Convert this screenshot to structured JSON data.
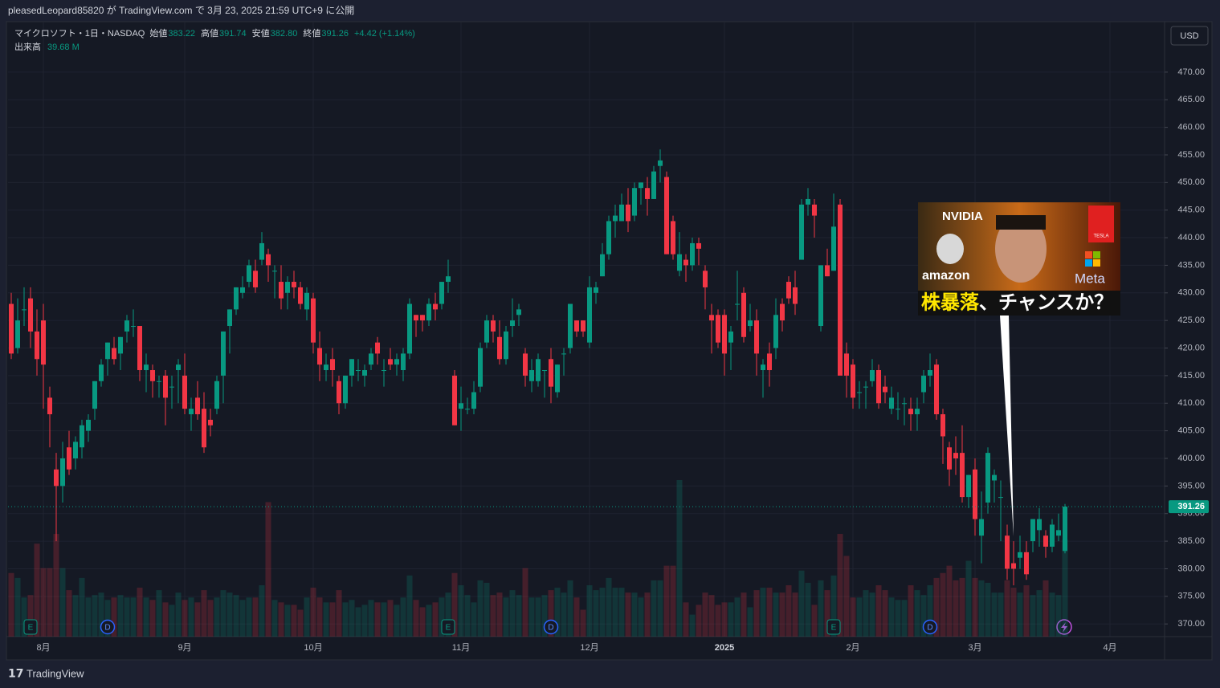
{
  "header": {
    "text": "pleasedLeopard85820 が TradingView.com で 3月 23, 2025 21:59 UTC+9 に公開"
  },
  "footer": {
    "brand": "TradingView"
  },
  "legend": {
    "symbol": "マイクロソフト・1日・NASDAQ",
    "items": [
      {
        "label": "始値",
        "value": "383.22"
      },
      {
        "label": "高値",
        "value": "391.74"
      },
      {
        "label": "安値",
        "value": "382.80"
      },
      {
        "label": "終値",
        "value": "391.26"
      }
    ],
    "change": "+4.42 (+1.14%)",
    "volume_label": "出来高",
    "volume_value": "39.68 M"
  },
  "currency": "USD",
  "thumbnail": {
    "brands": [
      "NVIDIA",
      "amazon",
      "Meta",
      "TESLA"
    ],
    "caption_highlight": "株暴落",
    "caption_rest": "、チャンスか？"
  },
  "chart_data": {
    "type": "candlestick",
    "up_color": "#089981",
    "down_color": "#f23645",
    "last_price": {
      "value": 391.26,
      "label": "391.26"
    },
    "ylim": [
      367.7,
      479.0
    ],
    "xlim": [
      -0.5,
      179.5
    ],
    "grid": true,
    "yticks": [
      {
        "value": 370,
        "label": "370.00"
      },
      {
        "value": 375,
        "label": "375.00"
      },
      {
        "value": 380,
        "label": "380.00"
      },
      {
        "value": 385,
        "label": "385.00"
      },
      {
        "value": 390,
        "label": "390.00"
      },
      {
        "value": 395,
        "label": "395.00"
      },
      {
        "value": 400,
        "label": "400.00"
      },
      {
        "value": 405,
        "label": "405.00"
      },
      {
        "value": 410,
        "label": "410.00"
      },
      {
        "value": 415,
        "label": "415.00"
      },
      {
        "value": 420,
        "label": "420.00"
      },
      {
        "value": 425,
        "label": "425.00"
      },
      {
        "value": 430,
        "label": "430.00"
      },
      {
        "value": 435,
        "label": "435.00"
      },
      {
        "value": 440,
        "label": "440.00"
      },
      {
        "value": 445,
        "label": "445.00"
      },
      {
        "value": 450,
        "label": "450.00"
      },
      {
        "value": 455,
        "label": "455.00"
      },
      {
        "value": 460,
        "label": "460.00"
      },
      {
        "value": 465,
        "label": "465.00"
      },
      {
        "value": 470,
        "label": "470.00"
      }
    ],
    "xticks": [
      {
        "value": 5,
        "label": "8月"
      },
      {
        "value": 27,
        "label": "9月"
      },
      {
        "value": 47,
        "label": "10月"
      },
      {
        "value": 70,
        "label": "11月"
      },
      {
        "value": 90,
        "label": "12月"
      },
      {
        "value": 111,
        "label": "2025"
      },
      {
        "value": 131,
        "label": "2月"
      },
      {
        "value": 150,
        "label": "3月"
      },
      {
        "value": 171,
        "label": "4月"
      }
    ],
    "events": [
      {
        "index": 3,
        "label": "E"
      },
      {
        "index": 15,
        "label": "D"
      },
      {
        "index": 68,
        "label": "E"
      },
      {
        "index": 84,
        "label": "D"
      },
      {
        "index": 128,
        "label": "E"
      },
      {
        "index": 143,
        "label": "D"
      }
    ],
    "candles": [
      [
        428,
        430,
        418,
        419
      ],
      [
        420,
        429,
        419,
        425
      ],
      [
        427,
        431,
        424,
        427
      ],
      [
        429,
        431,
        420,
        423
      ],
      [
        423,
        427,
        415,
        418
      ],
      [
        425,
        428,
        409,
        417
      ],
      [
        411,
        413,
        402,
        408
      ],
      [
        398,
        401,
        385,
        395
      ],
      [
        395,
        403,
        392,
        400
      ],
      [
        402,
        405,
        397,
        398
      ],
      [
        400,
        404,
        398,
        403
      ],
      [
        402,
        407,
        400,
        406
      ],
      [
        405,
        408,
        403,
        407
      ],
      [
        409,
        414,
        407,
        414
      ],
      [
        414,
        418,
        413,
        417
      ],
      [
        418,
        421,
        415,
        421
      ],
      [
        420,
        422,
        417,
        418
      ],
      [
        419,
        422,
        416,
        422
      ],
      [
        423,
        426,
        421,
        425
      ],
      [
        424,
        427,
        422,
        424
      ],
      [
        424,
        424,
        414,
        416
      ],
      [
        416,
        419,
        412,
        417
      ],
      [
        416,
        417,
        411,
        414
      ],
      [
        414,
        415,
        411,
        414
      ],
      [
        415,
        416,
        406,
        411
      ],
      [
        413,
        415,
        409,
        413
      ],
      [
        416,
        418,
        410,
        417
      ],
      [
        415,
        419,
        408,
        409
      ],
      [
        408,
        411,
        405,
        409
      ],
      [
        411,
        414,
        407,
        408
      ],
      [
        409,
        412,
        401,
        402
      ],
      [
        407,
        409,
        404,
        406
      ],
      [
        409,
        415,
        408,
        414
      ],
      [
        415,
        423,
        410,
        423
      ],
      [
        424,
        427,
        419,
        427
      ],
      [
        427,
        431,
        426,
        431
      ],
      [
        430,
        433,
        429,
        431
      ],
      [
        432,
        436,
        431,
        435
      ],
      [
        434,
        436,
        430,
        431
      ],
      [
        436,
        441,
        435,
        439
      ],
      [
        437,
        438,
        432,
        435
      ],
      [
        434,
        435,
        429,
        434
      ],
      [
        432,
        435,
        427,
        429
      ],
      [
        430,
        433,
        427,
        432
      ],
      [
        432,
        434,
        429,
        431
      ],
      [
        431,
        432,
        427,
        428
      ],
      [
        427,
        431,
        425,
        430
      ],
      [
        429,
        430,
        419,
        421
      ],
      [
        420,
        423,
        414,
        417
      ],
      [
        416,
        419,
        414,
        417
      ],
      [
        418,
        420,
        413,
        416
      ],
      [
        414,
        415,
        408,
        410
      ],
      [
        410,
        415,
        409,
        415
      ],
      [
        415,
        418,
        413,
        418
      ],
      [
        416,
        418,
        414,
        416
      ],
      [
        415,
        417,
        413,
        416
      ],
      [
        417,
        420,
        416,
        419
      ],
      [
        421,
        422,
        417,
        419
      ],
      [
        416,
        418,
        413,
        416
      ],
      [
        418,
        420,
        416,
        417
      ],
      [
        417,
        419,
        415,
        418
      ],
      [
        416,
        420,
        414,
        419
      ],
      [
        419,
        429,
        418,
        428
      ],
      [
        426,
        426,
        422,
        425
      ],
      [
        426,
        426,
        423,
        425
      ],
      [
        425,
        429,
        424,
        428
      ],
      [
        428,
        430,
        425,
        427
      ],
      [
        428,
        432,
        427,
        432
      ],
      [
        432,
        436,
        430,
        433
      ],
      [
        415,
        416,
        406,
        406
      ],
      [
        409,
        413,
        405,
        410
      ],
      [
        409,
        411,
        408,
        409
      ],
      [
        409,
        414,
        408,
        412
      ],
      [
        413,
        421,
        412,
        420
      ],
      [
        421,
        426,
        420,
        425
      ],
      [
        425,
        426,
        421,
        423
      ],
      [
        422,
        425,
        417,
        418
      ],
      [
        418,
        424,
        417,
        423
      ],
      [
        424,
        429,
        422,
        425
      ],
      [
        426,
        428,
        424,
        427
      ],
      [
        419,
        420,
        413,
        415
      ],
      [
        414,
        418,
        412,
        416
      ],
      [
        414,
        419,
        413,
        418
      ],
      [
        416,
        416,
        411,
        416
      ],
      [
        418,
        420,
        410,
        413
      ],
      [
        412,
        417,
        411,
        417
      ],
      [
        419,
        420,
        415,
        419
      ],
      [
        420,
        428,
        419,
        428
      ],
      [
        425,
        425,
        422,
        423
      ],
      [
        425,
        425,
        422,
        423
      ],
      [
        421,
        433,
        420,
        431
      ],
      [
        430,
        432,
        428,
        431
      ],
      [
        433,
        439,
        433,
        437
      ],
      [
        437,
        444,
        436,
        443
      ],
      [
        443,
        446,
        440,
        444
      ],
      [
        443,
        448,
        443,
        446
      ],
      [
        446,
        449,
        441,
        443
      ],
      [
        444,
        450,
        443,
        449
      ],
      [
        449,
        450,
        446,
        450
      ],
      [
        449,
        451,
        444,
        447
      ],
      [
        447,
        453,
        447,
        452
      ],
      [
        453,
        456,
        450,
        454
      ],
      [
        451,
        452,
        437,
        437
      ],
      [
        443,
        444,
        436,
        437
      ],
      [
        434,
        441,
        433,
        437
      ],
      [
        436,
        437,
        432,
        435
      ],
      [
        435,
        440,
        434,
        439
      ],
      [
        439,
        440,
        435,
        438
      ],
      [
        434,
        435,
        427,
        431
      ],
      [
        426,
        428,
        419,
        425
      ],
      [
        426,
        427,
        420,
        421
      ],
      [
        426,
        427,
        415,
        419
      ],
      [
        421,
        424,
        416,
        423
      ],
      [
        428,
        434,
        425,
        428
      ],
      [
        430,
        431,
        421,
        422
      ],
      [
        424,
        428,
        423,
        425
      ],
      [
        425,
        427,
        415,
        419
      ],
      [
        416,
        418,
        411,
        417
      ],
      [
        419,
        421,
        413,
        416
      ],
      [
        420,
        429,
        418,
        426
      ],
      [
        428,
        429,
        423,
        425
      ],
      [
        432,
        433,
        428,
        429
      ],
      [
        431,
        434,
        426,
        428
      ],
      [
        436,
        447,
        436,
        446
      ],
      [
        446,
        449,
        444,
        447
      ],
      [
        446,
        447,
        440,
        444
      ],
      [
        424,
        435,
        423,
        435
      ],
      [
        435,
        438,
        433,
        433
      ],
      [
        434,
        448,
        434,
        442
      ],
      [
        446,
        447,
        416,
        415
      ],
      [
        419,
        421,
        411,
        415
      ],
      [
        417,
        418,
        409,
        411
      ],
      [
        412,
        414,
        409,
        412
      ],
      [
        413,
        414,
        409,
        413
      ],
      [
        414,
        418,
        413,
        416
      ],
      [
        416,
        417,
        409,
        410
      ],
      [
        413,
        415,
        410,
        412
      ],
      [
        409,
        413,
        408,
        411
      ],
      [
        409,
        412,
        407,
        409
      ],
      [
        410,
        411,
        406,
        410
      ],
      [
        409,
        411,
        405,
        408
      ],
      [
        408,
        411,
        405,
        409
      ],
      [
        412,
        416,
        410,
        415
      ],
      [
        415,
        419,
        413,
        416
      ],
      [
        417,
        418,
        407,
        408
      ],
      [
        408,
        409,
        399,
        404
      ],
      [
        402,
        403,
        395,
        398
      ],
      [
        401,
        404,
        397,
        400
      ],
      [
        401,
        406,
        392,
        393
      ],
      [
        393,
        397,
        391,
        397
      ],
      [
        398,
        400,
        386,
        389
      ],
      [
        386,
        394,
        381,
        389
      ],
      [
        392,
        402,
        390,
        401
      ],
      [
        396,
        398,
        392,
        397
      ],
      [
        393,
        396,
        385,
        393
      ],
      [
        386,
        388,
        378,
        380
      ],
      [
        381,
        385,
        377,
        380
      ],
      [
        382,
        386,
        380,
        383
      ],
      [
        383,
        385,
        378,
        379
      ],
      [
        385,
        389,
        383,
        389
      ],
      [
        387,
        391,
        384,
        389
      ],
      [
        386,
        387,
        382,
        384
      ],
      [
        384,
        389,
        383,
        388
      ],
      [
        386,
        390,
        385,
        387
      ],
      [
        383.22,
        391.74,
        382.8,
        391.26
      ]
    ],
    "volume": [
      26,
      24,
      16,
      17,
      38,
      28,
      28,
      42,
      28,
      19,
      17,
      24,
      16,
      17,
      18,
      15,
      16,
      17,
      16,
      16,
      20,
      16,
      15,
      19,
      14,
      13,
      18,
      15,
      16,
      14,
      19,
      15,
      16,
      19,
      18,
      17,
      15,
      16,
      16,
      21,
      55,
      15,
      14,
      13,
      13,
      11,
      16,
      20,
      16,
      14,
      14,
      19,
      14,
      15,
      12,
      13,
      15,
      14,
      14,
      15,
      13,
      16,
      25,
      15,
      12,
      13,
      14,
      16,
      18,
      26,
      21,
      17,
      14,
      23,
      22,
      17,
      18,
      16,
      19,
      17,
      28,
      16,
      16,
      17,
      19,
      20,
      18,
      23,
      16,
      11,
      21,
      19,
      20,
      24,
      20,
      20,
      18,
      18,
      16,
      18,
      23,
      23,
      29,
      29,
      64,
      14,
      9,
      13,
      18,
      17,
      13,
      14,
      14,
      16,
      18,
      12,
      19,
      20,
      20,
      18,
      18,
      21,
      18,
      27,
      22,
      13,
      23,
      19,
      25,
      42,
      33,
      16,
      16,
      19,
      18,
      21,
      19,
      16,
      15,
      15,
      21,
      19,
      17,
      21,
      24,
      26,
      29,
      23,
      24,
      31,
      24,
      23,
      22,
      18,
      18,
      23,
      20,
      18,
      21,
      17,
      19,
      23,
      18,
      17,
      39.68
    ]
  }
}
